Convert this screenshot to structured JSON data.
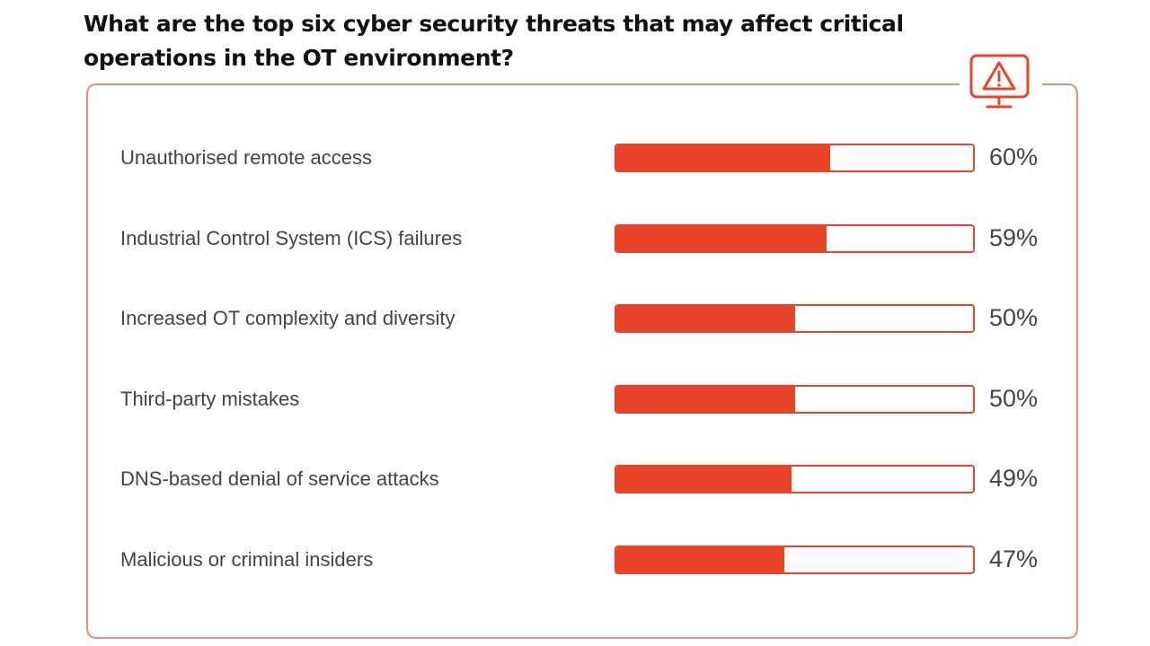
{
  "chart_data": {
    "type": "bar",
    "orientation": "horizontal",
    "title": "What are the top six cyber security threats that may affect critical operations in the OT environment?",
    "categories": [
      "Unauthorised remote access",
      "Industrial Control System (ICS) failures",
      "Increased OT complexity and diversity",
      "Third-party mistakes",
      "DNS-based denial of service attacks",
      "Malicious or criminal insiders"
    ],
    "values": [
      60,
      59,
      50,
      50,
      49,
      47
    ],
    "value_labels": [
      "60%",
      "59%",
      "50%",
      "50%",
      "49%",
      "47%"
    ],
    "ylim": [
      0,
      100
    ],
    "grid": false,
    "legend": "none"
  },
  "colors": {
    "accent": "#e8442a",
    "text": "#444444",
    "title": "#111111"
  },
  "icons": {
    "badge": "warning-monitor-icon"
  }
}
